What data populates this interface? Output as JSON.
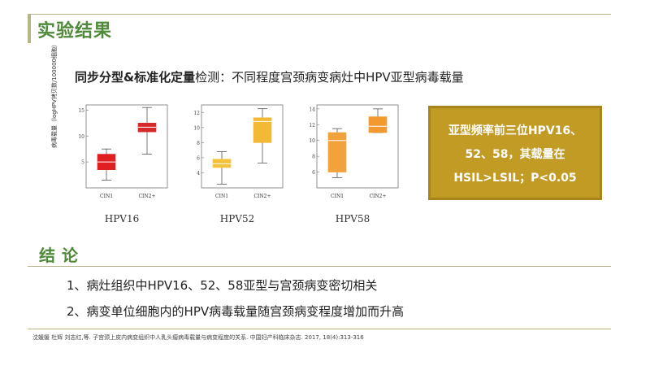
{
  "header": {
    "title": "实验结果"
  },
  "subtitle": {
    "bold": "同步分型&标准化定量",
    "rest": "检测：不同程度宫颈病变病灶中HPV亚型病毒载量"
  },
  "y_axis_label": "病毒载量（logHPV拷贝数/100000细胞）",
  "callout": {
    "line1": "亚型频率前三位HPV16、",
    "line2": "52、58，其载量在",
    "line3": "HSIL>LSIL；P<0.05",
    "color": "#c29b25"
  },
  "conclusion": {
    "title": "结论",
    "items": [
      "1、病灶组织中HPV16、52、58亚型与宫颈病变密切相关",
      "2、病变单位细胞内的HPV病毒载量随宫颈病变程度增加而升高"
    ]
  },
  "reference": "沈媛媛 杜辉 刘志红,等. 子宫颈上皮内病变组织中人乳头瘤病毒载量与病变程度的关系. 中国妇产科临床杂志. 2017, 18(4):313-316",
  "chart_data": [
    {
      "type": "box",
      "title": "HPV16",
      "categories": [
        "CIN1",
        "CIN2+"
      ],
      "ylim": [
        0,
        16
      ],
      "yticks": [
        5,
        10,
        15
      ],
      "colors": [
        "#e02020",
        "#d42a2a"
      ],
      "boxes": [
        {
          "min": 1.5,
          "q1": 3.5,
          "median": 5.0,
          "q3": 6.5,
          "max": 7.5
        },
        {
          "min": 6.5,
          "q1": 10.8,
          "median": 11.7,
          "q3": 12.5,
          "max": 15.5
        }
      ]
    },
    {
      "type": "box",
      "title": "HPV52",
      "categories": [
        "CIN1",
        "CIN2+"
      ],
      "ylim": [
        2,
        13
      ],
      "yticks": [
        4,
        6,
        8,
        10,
        12
      ],
      "colors": [
        "#f4c23a",
        "#f2b935"
      ],
      "boxes": [
        {
          "min": 2.5,
          "q1": 4.7,
          "median": 5.2,
          "q3": 5.8,
          "max": 6.8
        },
        {
          "min": 5.3,
          "q1": 8.0,
          "median": 10.8,
          "q3": 11.3,
          "max": 12.5
        }
      ]
    },
    {
      "type": "box",
      "title": "HPV58",
      "categories": [
        "CIN1",
        "CIN2+"
      ],
      "ylim": [
        4,
        14.5
      ],
      "yticks": [
        6,
        8,
        10,
        12,
        14
      ],
      "colors": [
        "#f2a23a",
        "#f29a30"
      ],
      "boxes": [
        {
          "min": 5.3,
          "q1": 6.0,
          "median": 10.0,
          "q3": 11.0,
          "max": 11.5
        },
        {
          "min": 11.0,
          "q1": 11.0,
          "median": 11.8,
          "q3": 13.0,
          "max": 14.0
        }
      ]
    }
  ]
}
